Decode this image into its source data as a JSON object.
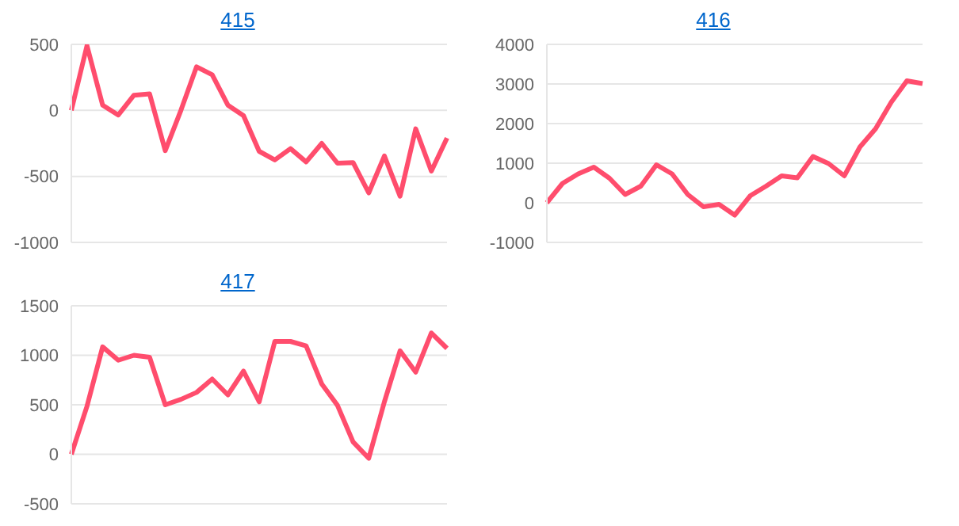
{
  "chart_data": [
    {
      "type": "line",
      "title": "415",
      "categories": [
        null,
        null,
        null,
        null,
        null,
        null,
        null,
        null,
        null,
        null,
        null,
        null,
        null,
        null,
        null,
        null,
        null,
        null,
        null,
        null,
        null,
        null,
        null,
        null,
        null
      ],
      "series": [
        {
          "color": "#ff4d6d",
          "values": [
            0,
            490,
            40,
            -35,
            115,
            125,
            -305,
            0,
            330,
            270,
            40,
            -40,
            -310,
            -375,
            -290,
            -390,
            -250,
            -400,
            -395,
            -625,
            -345,
            -650,
            -140,
            -460,
            -210
          ]
        }
      ],
      "ylim": [
        -1000,
        500
      ],
      "yticks": [
        -1000,
        -500,
        0,
        500
      ],
      "grid": "y",
      "tick_labels": "y",
      "legend": false,
      "marker": "none",
      "line_style": "solid"
    },
    {
      "type": "line",
      "title": "416",
      "categories": [
        null,
        null,
        null,
        null,
        null,
        null,
        null,
        null,
        null,
        null,
        null,
        null,
        null,
        null,
        null,
        null,
        null,
        null,
        null,
        null,
        null,
        null,
        null,
        null,
        null
      ],
      "series": [
        {
          "color": "#ff4d6d",
          "values": [
            0,
            490,
            730,
            900,
            620,
            210,
            420,
            960,
            730,
            210,
            -100,
            -40,
            -310,
            180,
            420,
            680,
            630,
            1170,
            990,
            680,
            1410,
            1870,
            2540,
            3080,
            3010
          ]
        }
      ],
      "ylim": [
        -1000,
        4000
      ],
      "yticks": [
        -1000,
        0,
        1000,
        2000,
        3000,
        4000
      ],
      "grid": "y",
      "tick_labels": "y",
      "legend": false,
      "marker": "none",
      "line_style": "solid"
    },
    {
      "type": "line",
      "title": "417",
      "categories": [
        null,
        null,
        null,
        null,
        null,
        null,
        null,
        null,
        null,
        null,
        null,
        null,
        null,
        null,
        null,
        null,
        null,
        null,
        null,
        null,
        null,
        null,
        null,
        null,
        null
      ],
      "series": [
        {
          "color": "#ff4d6d",
          "values": [
            0,
            485,
            1085,
            950,
            1000,
            980,
            500,
            555,
            625,
            760,
            600,
            840,
            530,
            1140,
            1140,
            1095,
            710,
            495,
            125,
            -40,
            530,
            1045,
            830,
            1225,
            1070
          ]
        }
      ],
      "ylim": [
        -500,
        1500
      ],
      "yticks": [
        -500,
        0,
        500,
        1000,
        1500
      ],
      "grid": "y",
      "tick_labels": "y",
      "legend": false,
      "marker": "none",
      "line_style": "solid"
    }
  ]
}
